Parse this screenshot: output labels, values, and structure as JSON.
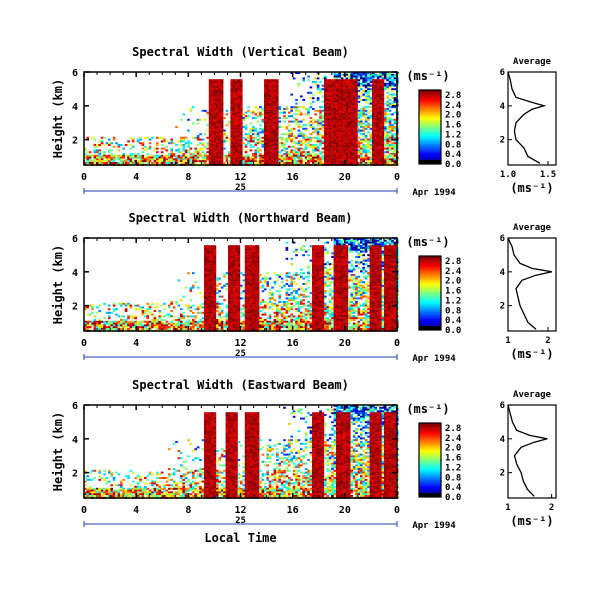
{
  "chart_data": [
    {
      "type": "heatmap",
      "title": "Spectral Width (Vertical Beam)",
      "ylabel": "Height (km)",
      "xlabel": "",
      "x_ticks": [
        "0",
        "4",
        "8",
        "12",
        "16",
        "20",
        "0"
      ],
      "y_ticks": [
        "6",
        "4",
        "2"
      ],
      "day_label": "25",
      "date_label": "Apr 1994",
      "xlim": [
        0,
        24
      ],
      "ylim": [
        0.5,
        6
      ],
      "colorbar": {
        "unit": "(ms⁻¹)",
        "labels": [
          "2.8",
          "2.4",
          "2.0",
          "1.6",
          "1.2",
          "0.8",
          "0.4",
          "0.0"
        ],
        "range": [
          0.0,
          3.0
        ]
      },
      "bursts": [
        10,
        11.6,
        14.3,
        18.8,
        19.5,
        20.4,
        22.5
      ],
      "average": {
        "title": "Average",
        "xlabel": "(ms⁻¹)",
        "x_ticks": [
          "1.0",
          "1.5"
        ],
        "y_ticks": [
          "6",
          "4",
          "2"
        ],
        "xlim": [
          1.0,
          1.6
        ],
        "profile": [
          [
            0.6,
            1.4
          ],
          [
            1.0,
            1.25
          ],
          [
            1.5,
            1.2
          ],
          [
            2.0,
            1.1
          ],
          [
            2.5,
            1.08
          ],
          [
            3.0,
            1.1
          ],
          [
            3.5,
            1.2
          ],
          [
            3.8,
            1.3
          ],
          [
            4.0,
            1.45
          ],
          [
            4.2,
            1.3
          ],
          [
            4.5,
            1.1
          ],
          [
            5.0,
            1.05
          ],
          [
            5.5,
            1.03
          ],
          [
            6.0,
            1.0
          ]
        ]
      }
    },
    {
      "type": "heatmap",
      "title": "Spectral Width (Northward Beam)",
      "ylabel": "Height (km)",
      "xlabel": "",
      "x_ticks": [
        "0",
        "4",
        "8",
        "12",
        "16",
        "20",
        "0"
      ],
      "y_ticks": [
        "6",
        "4",
        "2"
      ],
      "day_label": "25",
      "date_label": "Apr 1994",
      "xlim": [
        0,
        24
      ],
      "ylim": [
        0.5,
        6
      ],
      "colorbar": {
        "unit": "(ms⁻¹)",
        "labels": [
          "2.8",
          "2.4",
          "2.0",
          "1.6",
          "1.2",
          "0.8",
          "0.4",
          "0.0"
        ],
        "range": [
          0.0,
          3.0
        ]
      },
      "bursts": [
        9.6,
        11.4,
        12.8,
        17.8,
        19.6,
        22.3,
        23.4
      ],
      "average": {
        "title": "Average",
        "xlabel": "(ms⁻¹)",
        "x_ticks": [
          "1",
          "2"
        ],
        "y_ticks": [
          "6",
          "4",
          "2"
        ],
        "xlim": [
          1,
          2.2
        ],
        "profile": [
          [
            0.6,
            1.7
          ],
          [
            1.0,
            1.5
          ],
          [
            1.5,
            1.4
          ],
          [
            2.0,
            1.3
          ],
          [
            2.5,
            1.25
          ],
          [
            3.0,
            1.2
          ],
          [
            3.5,
            1.35
          ],
          [
            3.8,
            1.7
          ],
          [
            4.0,
            2.1
          ],
          [
            4.2,
            1.6
          ],
          [
            4.5,
            1.3
          ],
          [
            5.0,
            1.15
          ],
          [
            5.5,
            1.1
          ],
          [
            6.0,
            1.0
          ]
        ]
      }
    },
    {
      "type": "heatmap",
      "title": "Spectral Width (Eastward Beam)",
      "ylabel": "Height (km)",
      "xlabel": "Local Time",
      "x_ticks": [
        "0",
        "4",
        "8",
        "12",
        "16",
        "20",
        "0"
      ],
      "y_ticks": [
        "6",
        "4",
        "2"
      ],
      "day_label": "25",
      "date_label": "Apr 1994",
      "xlim": [
        0,
        24
      ],
      "ylim": [
        0.5,
        6
      ],
      "colorbar": {
        "unit": "(ms⁻¹)",
        "labels": [
          "2.8",
          "2.4",
          "2.0",
          "1.6",
          "1.2",
          "0.8",
          "0.4",
          "0.0"
        ],
        "range": [
          0.0,
          3.0
        ]
      },
      "bursts": [
        9.6,
        11.2,
        12.8,
        17.9,
        19.8,
        22.3,
        23.4
      ],
      "average": {
        "title": "Average",
        "xlabel": "(ms⁻¹)",
        "x_ticks": [
          "1",
          "2"
        ],
        "y_ticks": [
          "6",
          "4",
          "2"
        ],
        "xlim": [
          1,
          2.1
        ],
        "profile": [
          [
            0.6,
            1.6
          ],
          [
            1.0,
            1.45
          ],
          [
            1.5,
            1.35
          ],
          [
            2.0,
            1.3
          ],
          [
            2.5,
            1.2
          ],
          [
            3.0,
            1.15
          ],
          [
            3.5,
            1.3
          ],
          [
            3.8,
            1.6
          ],
          [
            4.0,
            1.9
          ],
          [
            4.2,
            1.5
          ],
          [
            4.5,
            1.2
          ],
          [
            5.0,
            1.1
          ],
          [
            5.5,
            1.05
          ],
          [
            6.0,
            1.0
          ]
        ]
      }
    }
  ]
}
